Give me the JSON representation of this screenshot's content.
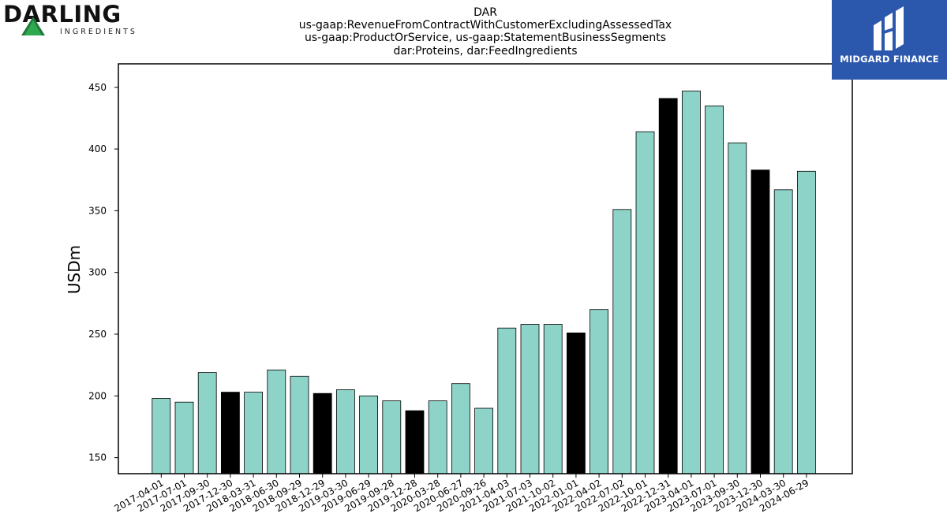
{
  "chart_data": {
    "type": "bar",
    "title_lines": [
      "DAR",
      "us-gaap:RevenueFromContractWithCustomerExcludingAssessedTax",
      "us-gaap:ProductOrService, us-gaap:StatementBusinessSegments",
      "dar:Proteins, dar:FeedIngredients"
    ],
    "ylabel": "USDm",
    "xlabel": "",
    "ylim": [
      137,
      469
    ],
    "yticks": [
      150,
      200,
      250,
      300,
      350,
      400,
      450
    ],
    "grid": false,
    "categories": [
      "2017-04-01",
      "2017-07-01",
      "2017-09-30",
      "2017-12-30",
      "2018-03-31",
      "2018-06-30",
      "2018-09-29",
      "2018-12-29",
      "2019-03-30",
      "2019-06-29",
      "2019-09-28",
      "2019-12-28",
      "2020-03-28",
      "2020-06-27",
      "2020-09-26",
      "2021-04-03",
      "2021-07-03",
      "2021-10-02",
      "2022-01-01",
      "2022-04-02",
      "2022-07-02",
      "2022-10-01",
      "2022-12-31",
      "2023-04-01",
      "2023-07-01",
      "2023-09-30",
      "2023-12-30",
      "2024-03-30",
      "2024-06-29"
    ],
    "values": [
      198,
      195,
      219,
      203,
      203,
      221,
      216,
      202,
      205,
      200,
      196,
      188,
      196,
      210,
      190,
      255,
      258,
      258,
      251,
      270,
      351,
      414,
      441,
      447,
      435,
      405,
      383,
      367,
      382
    ],
    "highlight": [
      false,
      false,
      false,
      true,
      false,
      false,
      false,
      true,
      false,
      false,
      false,
      true,
      false,
      false,
      false,
      false,
      false,
      false,
      true,
      false,
      false,
      false,
      true,
      false,
      false,
      false,
      true,
      false,
      false
    ],
    "colors": {
      "bar": "#8dd3c7",
      "highlight": "#000000",
      "edge": "#000000"
    }
  },
  "logos": {
    "left": {
      "name": "DARLING",
      "subtitle": "INGREDIENTS"
    },
    "right": {
      "name": "MIDGARD FINANCE"
    }
  }
}
